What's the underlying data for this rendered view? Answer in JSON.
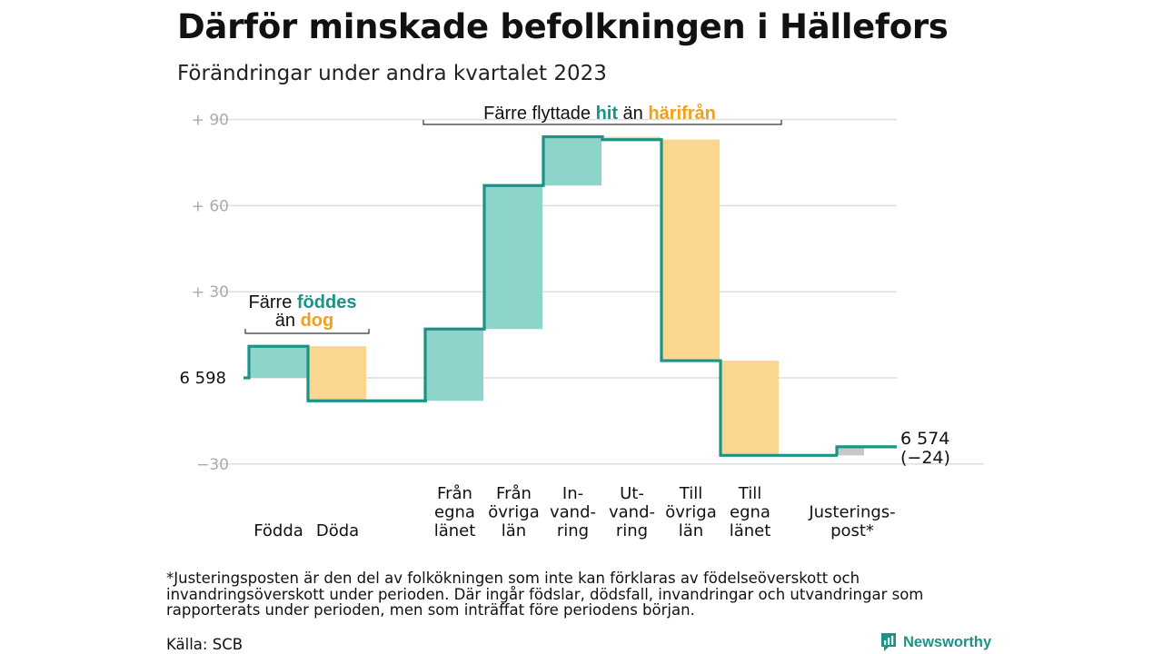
{
  "title": "Därför minskade befolkningen i Hällefors",
  "subtitle": "Förändringar under andra kvartalet 2023",
  "footnote": "*Justeringsposten är den del av folkökningen som inte kan förklaras av födelseöverskott och invandringsöverskott under perioden. Där ingår födslar, dödsfall, invandringar och utvandringar som rapporterats under perioden, men som inträffat före periodens början.",
  "source": "Källa: SCB",
  "brand": "Newsworthy",
  "colors": {
    "increase": "#8dd5cb",
    "decrease": "#fad68f",
    "line": "#1a9487",
    "adjust": "#c8c8c8",
    "grid": "#dddddd",
    "tick": "#aaaaaa",
    "accent_orange": "#f0a020",
    "accent_teal": "#1a9487"
  },
  "chart_data": {
    "type": "waterfall",
    "start_label": "6  598",
    "start_value": 6598,
    "end_value": 6574,
    "end_label_value": "6 574",
    "end_label_change": "(−24)",
    "y_relative_ticks": [
      {
        "value": 90,
        "label": "+  90"
      },
      {
        "value": 60,
        "label": "+  60"
      },
      {
        "value": 30,
        "label": "+  30"
      },
      {
        "value": -30,
        "label": "−30"
      }
    ],
    "ylim": [
      -30,
      90
    ],
    "steps": [
      {
        "label": "Födda",
        "change": 11,
        "kind": "increase"
      },
      {
        "label": "Döda",
        "change": -19,
        "kind": "decrease"
      },
      {
        "label": "",
        "change": 0,
        "kind": "gap"
      },
      {
        "label": "Från egna länet",
        "label_lines": [
          "Från",
          "egna",
          "länet"
        ],
        "change": 25,
        "kind": "increase"
      },
      {
        "label": "Från övriga län",
        "label_lines": [
          "Från",
          "övriga",
          "län"
        ],
        "change": 50,
        "kind": "increase"
      },
      {
        "label": "Invandring",
        "label_lines": [
          "In-",
          "vand-",
          "ring"
        ],
        "change": 17,
        "kind": "increase"
      },
      {
        "label": "Utvandring",
        "label_lines": [
          "Ut-",
          "vand-",
          "ring"
        ],
        "change": -1,
        "kind": "decrease"
      },
      {
        "label": "Till övriga län",
        "label_lines": [
          "Till",
          "övriga",
          "län"
        ],
        "change": -77,
        "kind": "decrease"
      },
      {
        "label": "Till egna länet",
        "label_lines": [
          "Till",
          "egna",
          "länet"
        ],
        "change": -33,
        "kind": "decrease"
      },
      {
        "label": "",
        "change": 0,
        "kind": "gap"
      },
      {
        "label": "Justeringspost*",
        "label_lines": [
          "Justerings-",
          "post*"
        ],
        "change": 3,
        "kind": "adjust"
      }
    ],
    "annotations": [
      {
        "id": "births",
        "line1_prefix": "Färre ",
        "line1_highlight": "föddes",
        "line2_prefix": "än ",
        "line2_highlight": "dog"
      },
      {
        "id": "migration",
        "prefix": "Färre flyttade ",
        "highlight1": "hit",
        "middle": " än ",
        "highlight2": "härifrån"
      }
    ]
  }
}
